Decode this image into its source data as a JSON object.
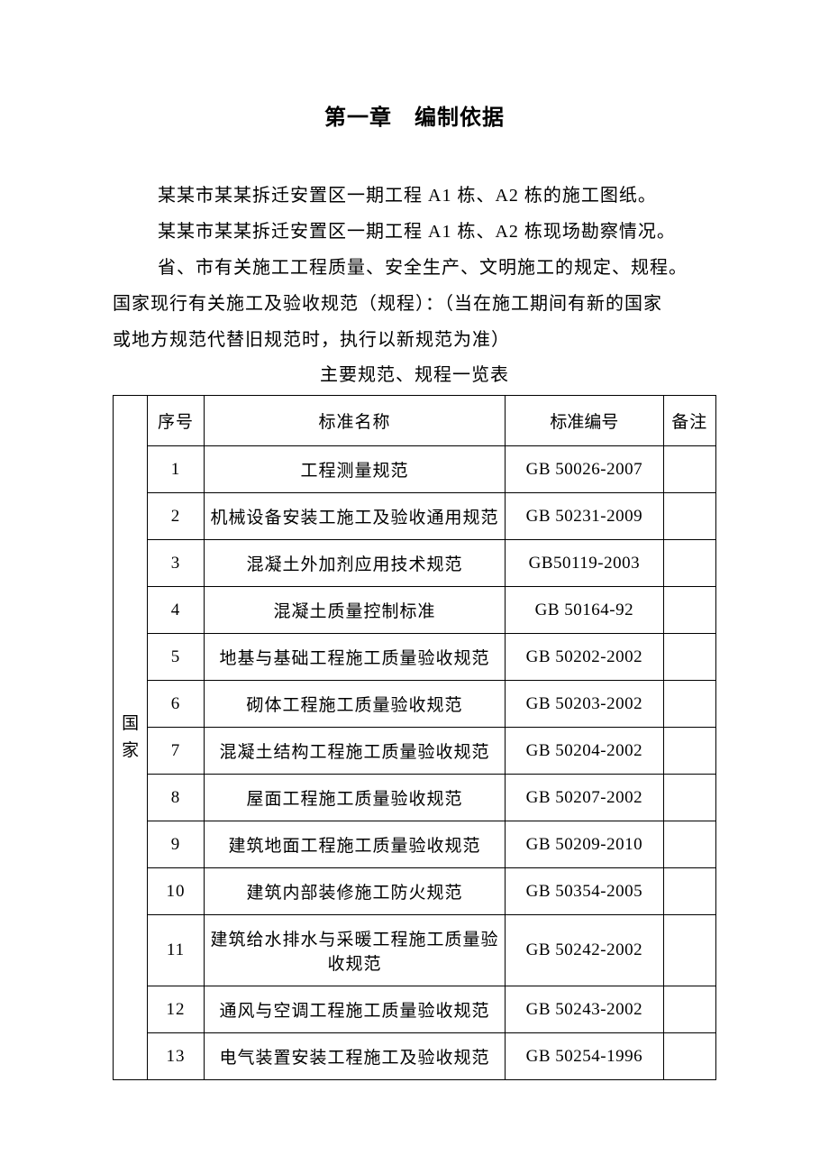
{
  "title": "第一章　编制依据",
  "paragraphs": [
    "某某市某某拆迁安置区一期工程 A1 栋、A2 栋的施工图纸。",
    "某某市某某拆迁安置区一期工程 A1 栋、A2 栋现场勘察情况。",
    "省、市有关施工工程质量、安全生产、文明施工的规定、规程。"
  ],
  "paragraph_noindent_1": "国家现行有关施工及验收规范（规程）：（当在施工期间有新的国家",
  "paragraph_noindent_2": "或地方规范代替旧规范时，执行以新规范为准）",
  "table_caption": "主要规范、规程一览表",
  "table": {
    "headers": {
      "seq": "序号",
      "name": "标准名称",
      "code": "标准编号",
      "remark": "备注"
    },
    "category_label": "国家",
    "rows": [
      {
        "seq": "1",
        "name": "工程测量规范",
        "code": "GB 50026-2007",
        "remark": ""
      },
      {
        "seq": "2",
        "name": "机械设备安装工施工及验收通用规范",
        "code": "GB 50231-2009",
        "remark": ""
      },
      {
        "seq": "3",
        "name": "混凝土外加剂应用技术规范",
        "code": "GB50119-2003",
        "remark": ""
      },
      {
        "seq": "4",
        "name": "混凝土质量控制标准",
        "code": "GB 50164-92",
        "remark": ""
      },
      {
        "seq": "5",
        "name": "地基与基础工程施工质量验收规范",
        "code": "GB 50202-2002",
        "remark": ""
      },
      {
        "seq": "6",
        "name": "砌体工程施工质量验收规范",
        "code": "GB 50203-2002",
        "remark": ""
      },
      {
        "seq": "7",
        "name": "混凝土结构工程施工质量验收规范",
        "code": "GB 50204-2002",
        "remark": ""
      },
      {
        "seq": "8",
        "name": "屋面工程施工质量验收规范",
        "code": "GB 50207-2002",
        "remark": ""
      },
      {
        "seq": "9",
        "name": "建筑地面工程施工质量验收规范",
        "code": "GB 50209-2010",
        "remark": ""
      },
      {
        "seq": "10",
        "name": "建筑内部装修施工防火规范",
        "code": "GB 50354-2005",
        "remark": ""
      },
      {
        "seq": "11",
        "name": "建筑给水排水与采暖工程施工质量验收规范",
        "code": "GB 50242-2002",
        "remark": ""
      },
      {
        "seq": "12",
        "name": "通风与空调工程施工质量验收规范",
        "code": "GB 50243-2002",
        "remark": ""
      },
      {
        "seq": "13",
        "name": "电气装置安装工程施工及验收规范",
        "code": "GB 50254-1996",
        "remark": ""
      }
    ]
  },
  "style": {
    "background_color": "#ffffff",
    "text_color": "#000000",
    "border_color": "#000000",
    "title_fontsize": 24,
    "body_fontsize": 20,
    "table_fontsize": 19
  }
}
